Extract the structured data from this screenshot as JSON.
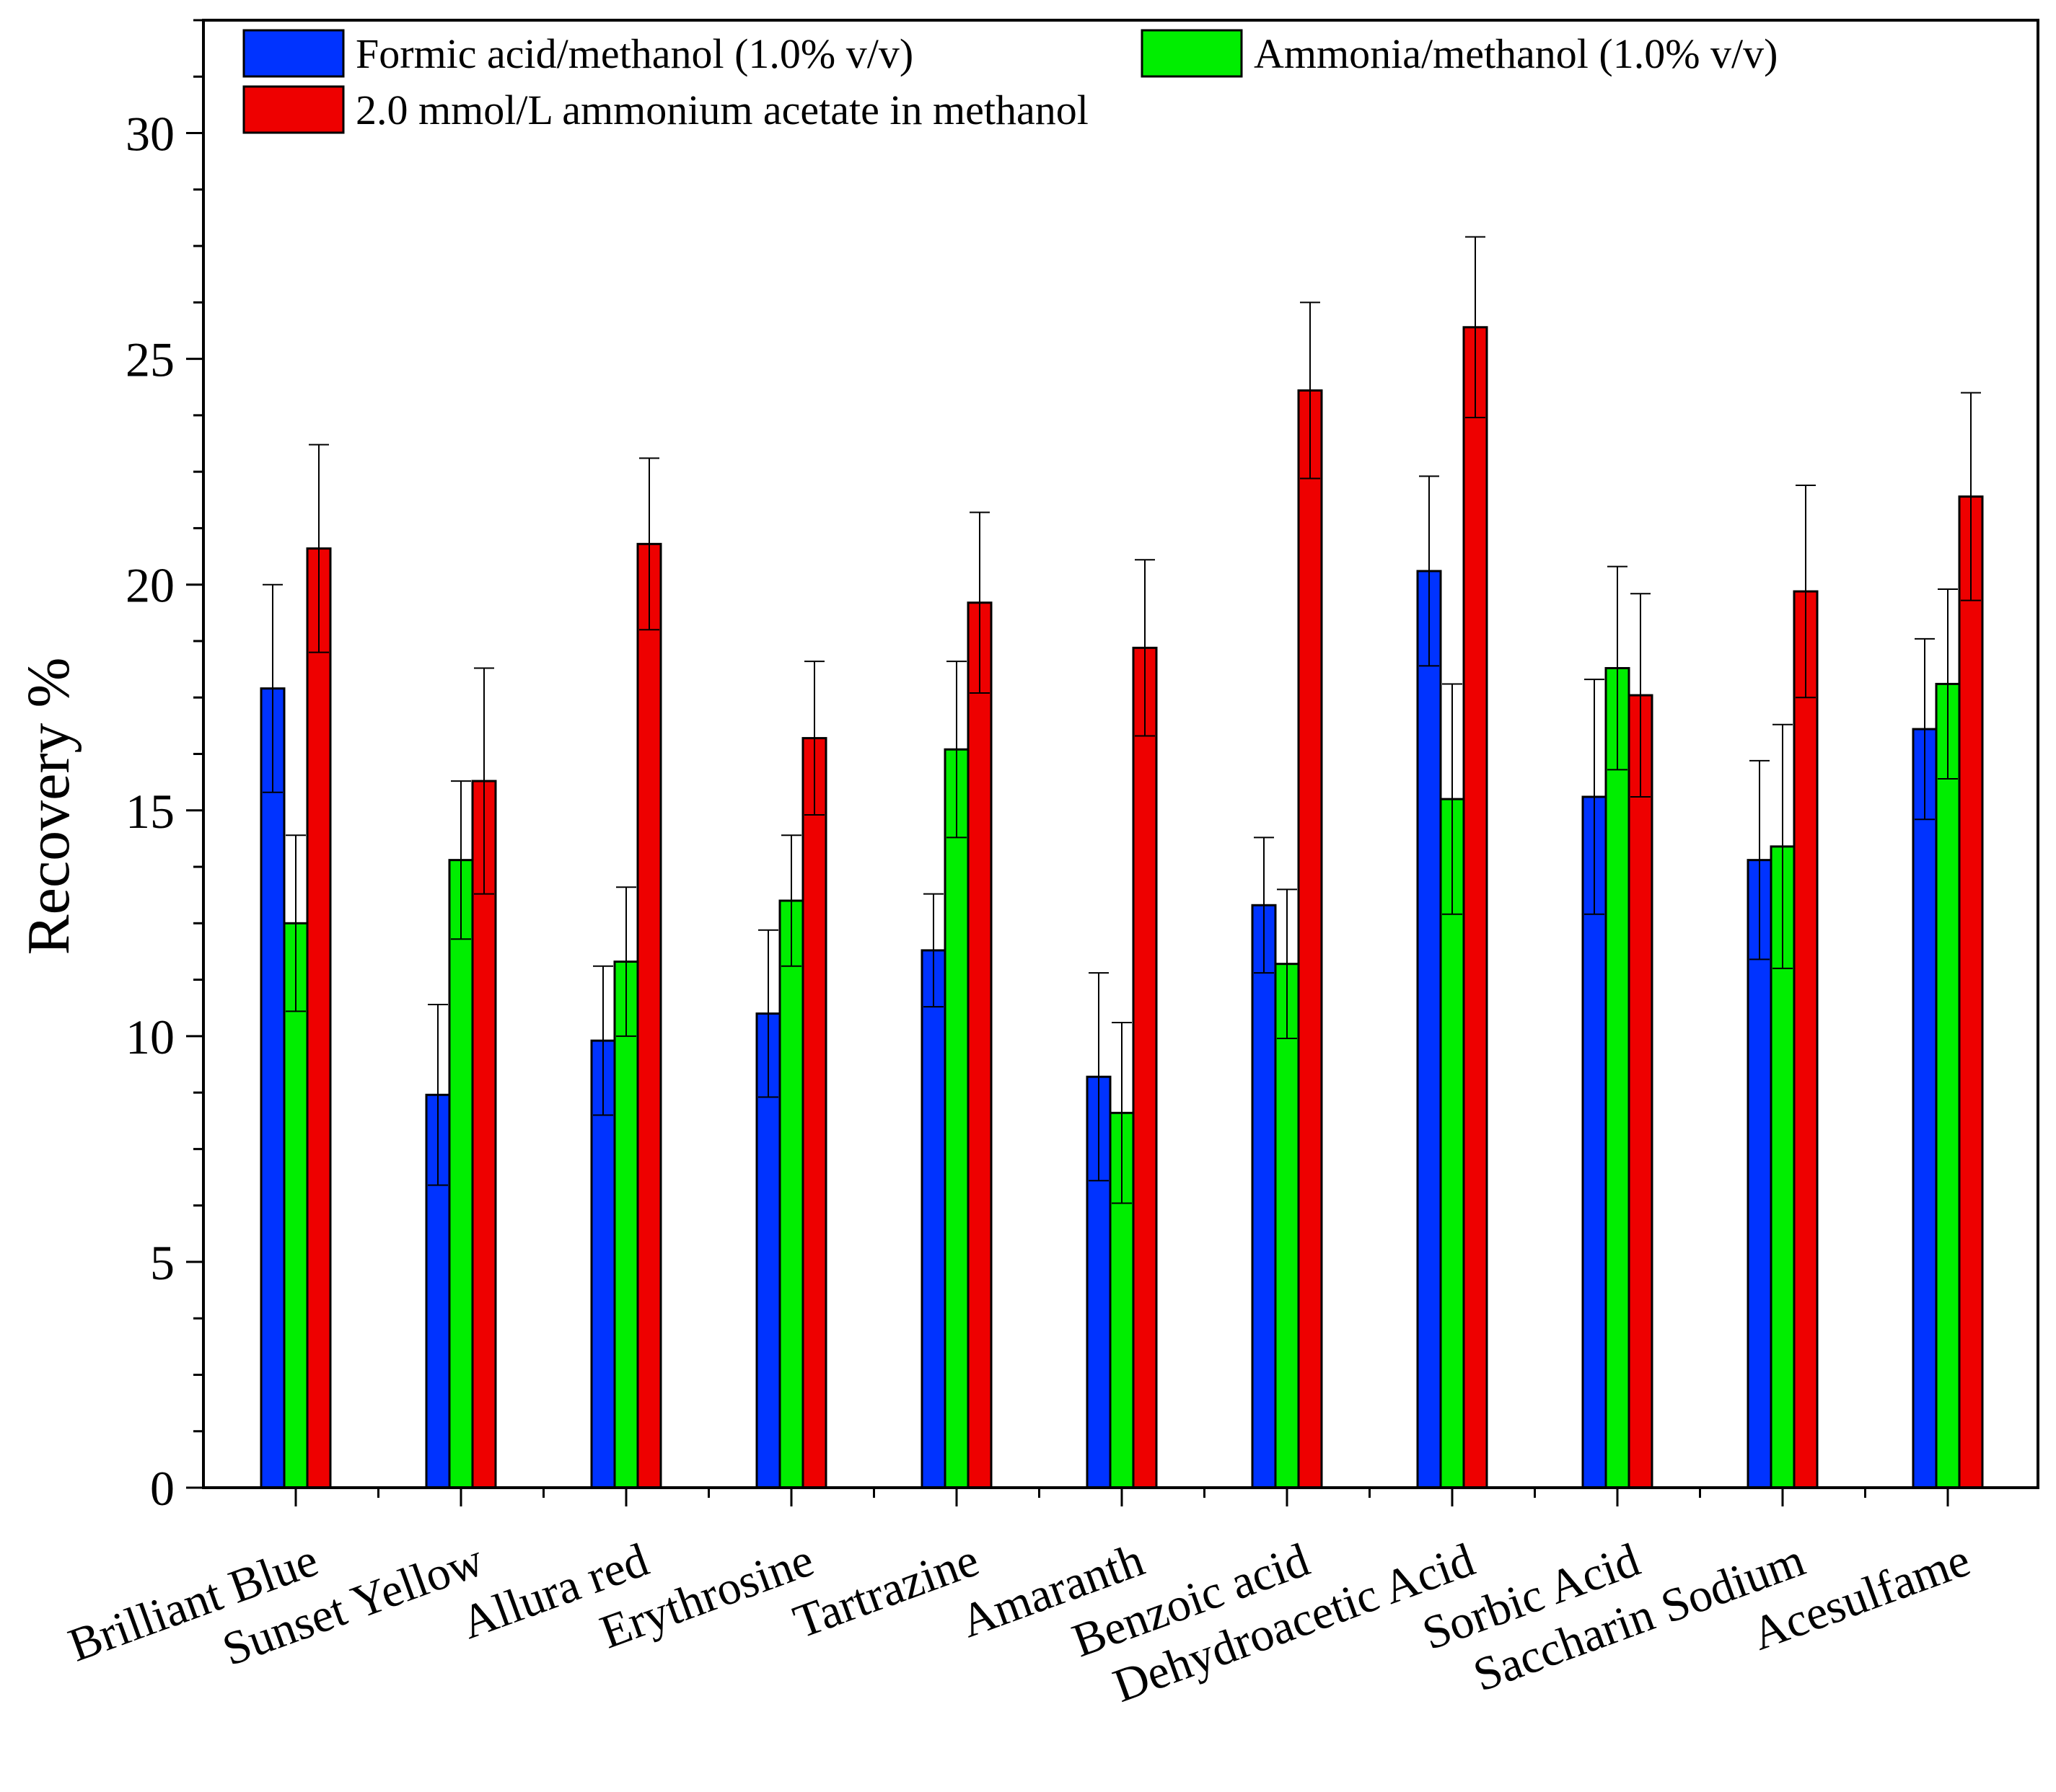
{
  "chart_data": {
    "type": "bar",
    "title": "",
    "xlabel": "",
    "ylabel": "Recovery %",
    "ylim": [
      0,
      32.5
    ],
    "yticks": [
      "0",
      "5",
      "10",
      "15",
      "20",
      "25",
      "30"
    ],
    "grid": false,
    "legend_position": "top",
    "categories": [
      "Brilliant Blue",
      "Sunset Yellow",
      "Allura red",
      "Erythrosine",
      "Tartrazine",
      "Amaranth",
      "Benzoic acid",
      "Dehydroacetic Acid",
      "Sorbic Acid",
      "Saccharin Sodium",
      "Acesulfame"
    ],
    "series": [
      {
        "name": "Formic acid/methanol (1.0% v/v)",
        "color": "#0033ff",
        "values": [
          17.7,
          8.7,
          9.9,
          10.5,
          11.9,
          9.1,
          12.9,
          20.3,
          15.3,
          13.9,
          16.8
        ],
        "errors": [
          2.3,
          2.0,
          1.65,
          1.85,
          1.25,
          2.3,
          1.5,
          2.1,
          2.6,
          2.2,
          2.0
        ]
      },
      {
        "name": "Ammonia/methanol (1.0% v/v)",
        "color": "#00ee00",
        "values": [
          12.5,
          13.9,
          11.65,
          13.0,
          16.35,
          8.3,
          11.6,
          15.25,
          18.15,
          14.2,
          17.8
        ],
        "errors": [
          1.95,
          1.75,
          1.65,
          1.45,
          1.95,
          2.0,
          1.65,
          2.55,
          2.25,
          2.7,
          2.1
        ]
      },
      {
        "name": "2.0 mmol/L ammonium acetate in methanol",
        "color": "#ee0000",
        "values": [
          20.8,
          15.65,
          20.9,
          16.6,
          19.6,
          18.6,
          24.3,
          25.7,
          17.55,
          19.85,
          21.95
        ],
        "errors": [
          2.3,
          2.5,
          1.9,
          1.7,
          2.0,
          1.95,
          1.95,
          2.0,
          2.25,
          2.35,
          2.3
        ]
      }
    ]
  }
}
